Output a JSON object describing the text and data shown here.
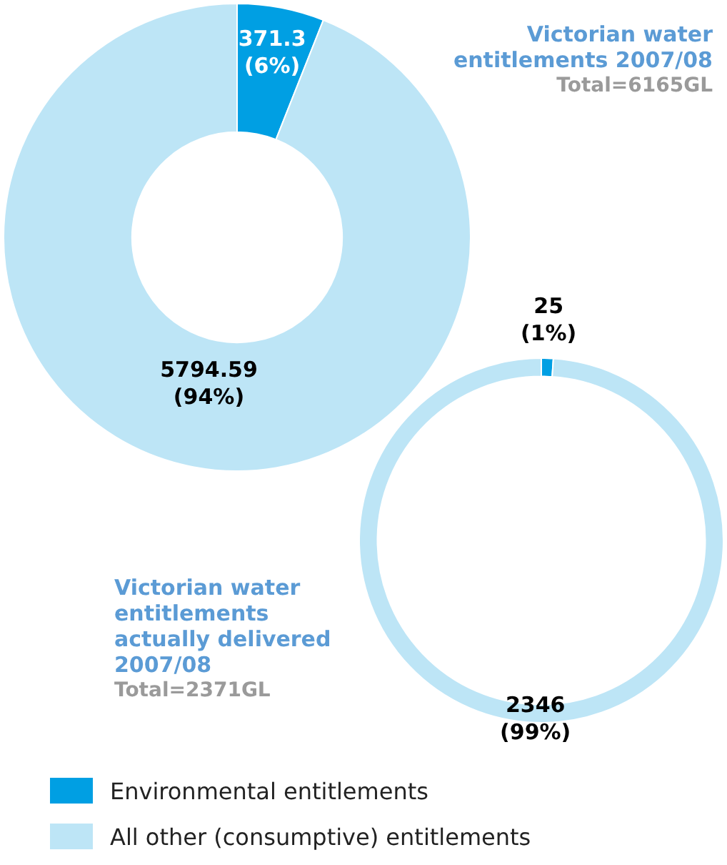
{
  "chart_data": [
    {
      "type": "donut",
      "title": "Victorian water entitlements 2007/08",
      "subtitle": "Total=6165GL",
      "categories": [
        "Environmental entitlements",
        "All other (consumptive) entitlements"
      ],
      "values": [
        371.3,
        5794.59
      ],
      "colors": [
        "#009fe3",
        "#bde5f6"
      ],
      "value_labels": [
        "371.3\n(6%)",
        "5794.59\n(94%)"
      ],
      "legend": "bottom"
    },
    {
      "type": "donut",
      "title": "Victorian water entitlements actually delivered 2007/08",
      "subtitle": "Total=2371GL",
      "categories": [
        null,
        null
      ],
      "values": [
        25,
        2346
      ],
      "colors": [
        "#009fe3",
        "#bde5f6"
      ],
      "value_labels": [
        "25\n(1%)",
        "2346\n(99%)"
      ],
      "legend": false
    }
  ]
}
